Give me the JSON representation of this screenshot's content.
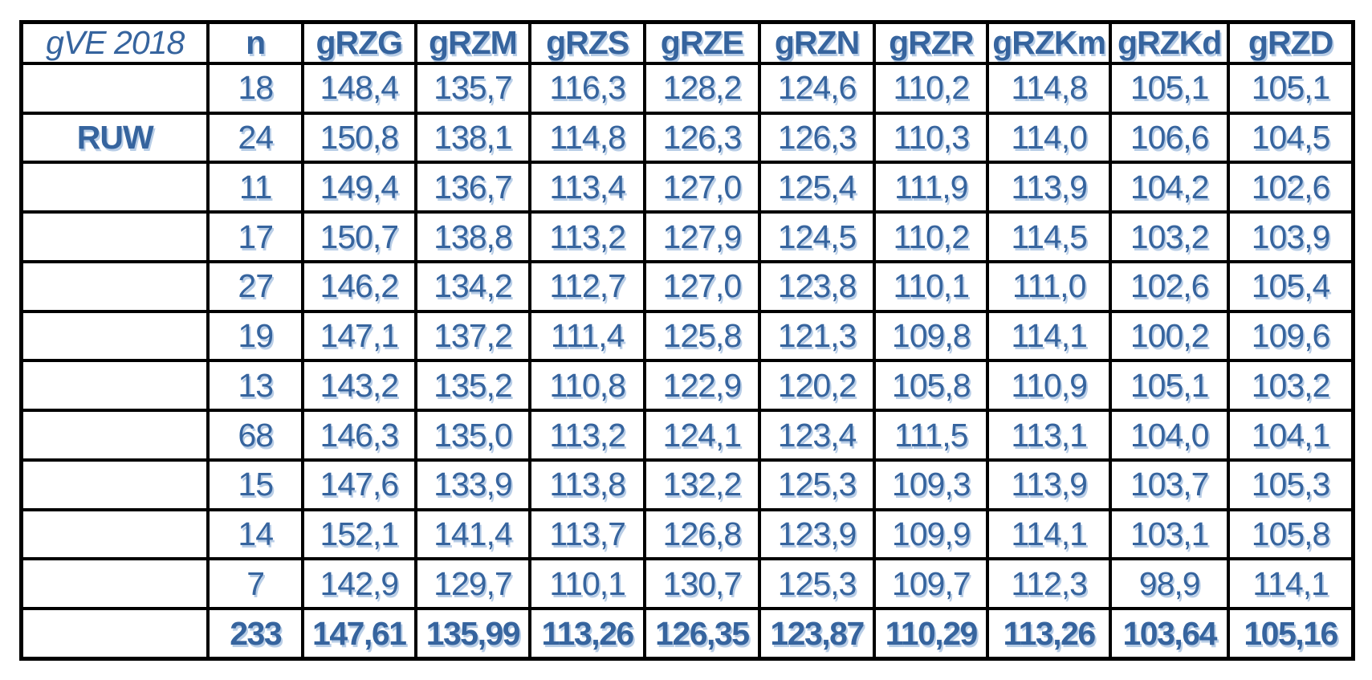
{
  "colors": {
    "value_text": "#36649E",
    "header_text": "#36649E",
    "label_text": "#215968",
    "title_text": "#000000",
    "green_highlight": "#C5D79E",
    "orange_highlight": "#FBD5B4",
    "border": "#000000",
    "background": "#FFFFFF"
  },
  "chart_data": {
    "type": "table",
    "title": "gVE 2018",
    "columns": [
      "n",
      "gRZG",
      "gRZM",
      "gRZS",
      "gRZE",
      "gRZN",
      "gRZR",
      "gRZKm",
      "gRZKd",
      "gRZD"
    ],
    "rows": [
      {
        "label": "",
        "values": [
          "18",
          "148,4",
          "135,7",
          "116,3",
          "128,2",
          "124,6",
          "110,2",
          "114,8",
          "105,1",
          "105,1"
        ],
        "highlights": [
          "",
          "",
          "",
          "green",
          "",
          "",
          "",
          "green",
          "",
          ""
        ]
      },
      {
        "label": "RUW",
        "values": [
          "24",
          "150,8",
          "138,1",
          "114,8",
          "126,3",
          "126,3",
          "110,3",
          "114,0",
          "106,6",
          "104,5"
        ],
        "highlights": [
          "",
          "",
          "",
          "",
          "",
          "green",
          "",
          "",
          "green",
          ""
        ]
      },
      {
        "label": "",
        "values": [
          "11",
          "149,4",
          "136,7",
          "113,4",
          "127,0",
          "125,4",
          "111,9",
          "113,9",
          "104,2",
          "102,6"
        ],
        "highlights": [
          "",
          "",
          "",
          "",
          "",
          "",
          "green",
          "",
          "",
          "orange"
        ]
      },
      {
        "label": "",
        "values": [
          "17",
          "150,7",
          "138,8",
          "113,2",
          "127,9",
          "124,5",
          "110,2",
          "114,5",
          "103,2",
          "103,9"
        ],
        "highlights": [
          "",
          "",
          "",
          "",
          "",
          "",
          "",
          "",
          "",
          ""
        ]
      },
      {
        "label": "",
        "values": [
          "27",
          "146,2",
          "134,2",
          "112,7",
          "127,0",
          "123,8",
          "110,1",
          "111,0",
          "102,6",
          "105,4"
        ],
        "highlights": [
          "",
          "",
          "",
          "",
          "",
          "",
          "",
          "",
          "",
          ""
        ]
      },
      {
        "label": "",
        "values": [
          "19",
          "147,1",
          "137,2",
          "111,4",
          "125,8",
          "121,3",
          "109,8",
          "114,1",
          "100,2",
          "109,6"
        ],
        "highlights": [
          "",
          "",
          "",
          "",
          "",
          "",
          "",
          "",
          "",
          ""
        ]
      },
      {
        "label": "",
        "values": [
          "13",
          "143,2",
          "135,2",
          "110,8",
          "122,9",
          "120,2",
          "105,8",
          "110,9",
          "105,1",
          "103,2"
        ],
        "highlights": [
          "",
          "",
          "",
          "",
          "orange",
          "orange",
          "orange",
          "orange",
          "",
          ""
        ]
      },
      {
        "label": "",
        "values": [
          "68",
          "146,3",
          "135,0",
          "113,2",
          "124,1",
          "123,4",
          "111,5",
          "113,1",
          "104,0",
          "104,1"
        ],
        "highlights": [
          "",
          "",
          "",
          "",
          "",
          "",
          "",
          "",
          "",
          ""
        ]
      },
      {
        "label": "",
        "values": [
          "15",
          "147,6",
          "133,9",
          "113,8",
          "132,2",
          "125,3",
          "109,3",
          "113,9",
          "103,7",
          "105,3"
        ],
        "highlights": [
          "",
          "",
          "",
          "",
          "green",
          "",
          "",
          "",
          "",
          ""
        ]
      },
      {
        "label": "",
        "values": [
          "14",
          "152,1",
          "141,4",
          "113,7",
          "126,8",
          "123,9",
          "109,9",
          "114,1",
          "103,1",
          "105,8"
        ],
        "highlights": [
          "",
          "green",
          "green",
          "",
          "",
          "",
          "",
          "",
          "",
          ""
        ]
      },
      {
        "label": "",
        "values": [
          "7",
          "142,9",
          "129,7",
          "110,1",
          "130,7",
          "125,3",
          "109,7",
          "112,3",
          "98,9",
          "114,1"
        ],
        "highlights": [
          "",
          "orange",
          "orange",
          "orange",
          "",
          "",
          "",
          "",
          "orange",
          "green"
        ]
      }
    ],
    "total_row": {
      "label": "",
      "values": [
        "233",
        "147,61",
        "135,99",
        "113,26",
        "126,35",
        "123,87",
        "110,29",
        "113,26",
        "103,64",
        "105,16"
      ]
    },
    "layout_hints": {
      "grid": "all black borders",
      "highlight_meaning_colors": {
        "green": "#C5D79E",
        "orange": "#FBD5B4"
      }
    }
  }
}
